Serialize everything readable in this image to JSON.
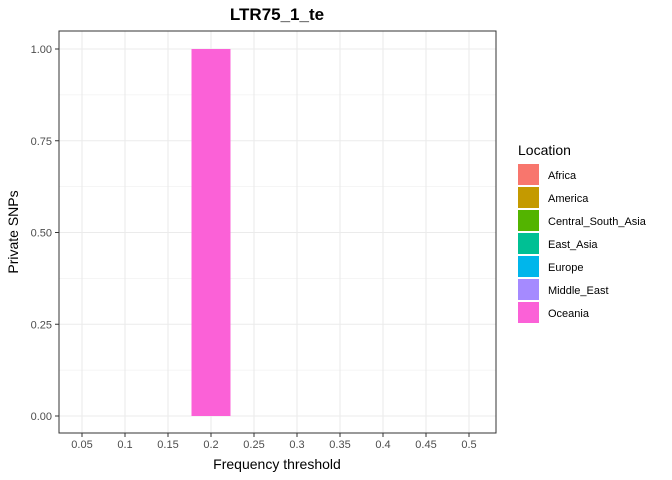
{
  "chart_data": {
    "type": "bar",
    "title": "LTR75_1_te",
    "xlabel": "Frequency threshold",
    "ylabel": "Private SNPs",
    "x_ticks": [
      "0.05",
      "0.1",
      "0.15",
      "0.2",
      "0.25",
      "0.3",
      "0.35",
      "0.4",
      "0.45",
      "0.5"
    ],
    "y_ticks": [
      "0.00",
      "0.25",
      "0.50",
      "0.75",
      "1.00"
    ],
    "ylim": [
      0,
      1
    ],
    "grid": true,
    "legend_position": "right",
    "legend": {
      "title": "Location",
      "entries": [
        {
          "name": "Africa",
          "color": "#F8766D"
        },
        {
          "name": "America",
          "color": "#C49A00"
        },
        {
          "name": "Central_South_Asia",
          "color": "#53B400"
        },
        {
          "name": "East_Asia",
          "color": "#00C094"
        },
        {
          "name": "Europe",
          "color": "#00B6EB"
        },
        {
          "name": "Middle_East",
          "color": "#A58AFF"
        },
        {
          "name": "Oceania",
          "color": "#FB61D7"
        }
      ]
    },
    "bars": [
      {
        "x": "0.2",
        "location": "Oceania",
        "value": 1.0
      }
    ]
  }
}
